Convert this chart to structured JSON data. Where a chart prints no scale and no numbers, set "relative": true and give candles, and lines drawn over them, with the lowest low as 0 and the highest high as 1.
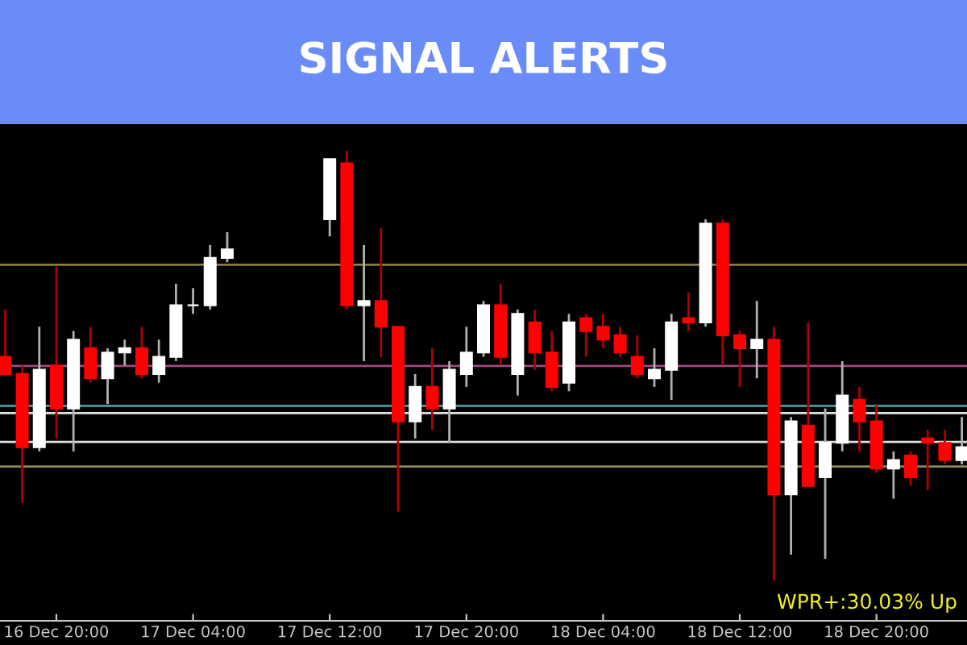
{
  "chart_data": {
    "type": "candlestick",
    "title": "SIGNAL ALERTS",
    "relative": true,
    "categories": [
      null,
      null,
      null,
      "16 Dec 20:00",
      null,
      null,
      null,
      null,
      null,
      null,
      null,
      "17 Dec 04:00",
      null,
      null,
      null,
      null,
      null,
      null,
      null,
      "17 Dec 12:00",
      null,
      null,
      null,
      null,
      null,
      null,
      null,
      "17 Dec 20:00",
      null,
      null,
      null,
      null,
      null,
      null,
      null,
      "18 Dec 04:00",
      null,
      null,
      null,
      null,
      null,
      null,
      null,
      "18 Dec 12:00",
      null,
      null,
      null,
      null,
      null,
      null,
      null,
      "18 Dec 20:00",
      null,
      null,
      null,
      null,
      null
    ],
    "ohlc": [
      [
        0.52,
        0.63,
        0.48,
        0.48
      ],
      [
        0.48,
        0.5,
        0.18,
        0.31
      ],
      [
        0.31,
        0.59,
        0.3,
        0.49
      ],
      [
        0.5,
        0.73,
        0.33,
        0.4
      ],
      [
        0.4,
        0.58,
        0.3,
        0.56
      ],
      [
        0.54,
        0.59,
        0.46,
        0.47
      ],
      [
        0.47,
        0.54,
        0.41,
        0.53
      ],
      [
        0.53,
        0.56,
        0.5,
        0.54
      ],
      [
        0.54,
        0.59,
        0.47,
        0.48
      ],
      [
        0.48,
        0.56,
        0.46,
        0.52
      ],
      [
        0.52,
        0.69,
        0.51,
        0.64
      ],
      [
        0.64,
        0.68,
        0.62,
        0.64
      ],
      [
        0.64,
        0.78,
        0.63,
        0.75
      ],
      [
        0.75,
        0.81,
        0.74,
        0.77
      ],
      null,
      null,
      null,
      null,
      null,
      [
        0.84,
        0.98,
        0.8,
        0.98
      ],
      [
        0.97,
        1,
        0.63,
        0.64
      ],
      [
        0.64,
        0.78,
        0.51,
        0.65
      ],
      [
        0.65,
        0.82,
        0.52,
        0.59
      ],
      [
        0.59,
        0.59,
        0.16,
        0.37
      ],
      [
        0.37,
        0.48,
        0.33,
        0.45
      ],
      [
        0.45,
        0.54,
        0.35,
        0.4
      ],
      [
        0.4,
        0.51,
        0.32,
        0.49
      ],
      [
        0.48,
        0.59,
        0.45,
        0.53
      ],
      [
        0.53,
        0.65,
        0.52,
        0.64
      ],
      [
        0.64,
        0.69,
        0.5,
        0.52
      ],
      [
        0.48,
        0.63,
        0.43,
        0.62
      ],
      [
        0.6,
        0.63,
        0.49,
        0.53
      ],
      [
        0.53,
        0.58,
        0.44,
        0.45
      ],
      [
        0.46,
        0.62,
        0.44,
        0.6
      ],
      [
        0.61,
        0.62,
        0.52,
        0.58
      ],
      [
        0.59,
        0.62,
        0.54,
        0.56
      ],
      [
        0.57,
        0.59,
        0.52,
        0.53
      ],
      [
        0.52,
        0.57,
        0.47,
        0.48
      ],
      [
        0.47,
        0.54,
        0.45,
        0.49
      ],
      [
        0.49,
        0.62,
        0.42,
        0.6
      ],
      [
        0.61,
        0.67,
        0.58,
        0.6
      ],
      [
        0.6,
        0.84,
        0.59,
        0.83
      ],
      [
        0.83,
        0.84,
        0.5,
        0.57
      ],
      [
        0.57,
        0.58,
        0.45,
        0.54
      ],
      [
        0.54,
        0.65,
        0.47,
        0.56
      ],
      [
        0.56,
        0.59,
        0,
        0.2
      ],
      [
        0.2,
        0.38,
        0.06,
        0.37
      ],
      [
        0.36,
        0.6,
        0.22,
        0.22
      ],
      [
        0.24,
        0.4,
        0.05,
        0.32
      ],
      [
        0.32,
        0.51,
        0.3,
        0.43
      ],
      [
        0.42,
        0.45,
        0.3,
        0.37
      ],
      [
        0.37,
        0.41,
        0.25,
        0.26
      ],
      [
        0.26,
        0.3,
        0.19,
        0.28
      ],
      [
        0.29,
        0.3,
        0.22,
        0.24
      ],
      [
        0.33,
        0.35,
        0.21,
        0.32
      ],
      [
        0.32,
        0.35,
        0.27,
        0.28
      ],
      [
        0.28,
        0.38,
        0.27,
        0.31
      ]
    ],
    "colors": [
      "#ff0000",
      "#ff0000",
      "#ffffff",
      "#ff0000",
      "#ffffff",
      "#ff0000",
      "#ffffff",
      "#ffffff",
      "#ff0000",
      "#ffffff",
      "#ffffff",
      "#ffffff",
      "#ffffff",
      "#ffffff",
      null,
      null,
      null,
      null,
      null,
      "#ffffff",
      "#ff0000",
      "#ffffff",
      "#ff0000",
      "#ff0000",
      "#ffffff",
      "#ff0000",
      "#ffffff",
      "#ffffff",
      "#ffffff",
      "#ff0000",
      "#ffffff",
      "#ff0000",
      "#ff0000",
      "#ffffff",
      "#ff0000",
      "#ff0000",
      "#ff0000",
      "#ff0000",
      "#ffffff",
      "#ffffff",
      "#ff0000",
      "#ffffff",
      "#ff0000",
      "#ff0000",
      "#ffffff",
      "#ff0000",
      "#ffffff",
      "#ff0000",
      "#ffffff",
      "#ffffff",
      "#ff0000",
      "#ff0000",
      "#ffffff",
      "#ff0000",
      "#ff0000",
      "#ff0000",
      "#ffffff"
    ],
    "ref_lines": [
      {
        "axis": "y",
        "value": 0.734,
        "color": "#8a7a48"
      },
      {
        "axis": "y",
        "value": 0.499,
        "color": "#a04a80"
      },
      {
        "axis": "y",
        "value": 0.406,
        "color": "#4a9aa0"
      },
      {
        "axis": "y",
        "value": 0.389,
        "color": "#e0e0e0"
      },
      {
        "axis": "y",
        "value": 0.322,
        "color": "#e0e0e0"
      },
      {
        "axis": "y",
        "value": 0.265,
        "color": "#8a8a58"
      }
    ],
    "annotations": [
      "WPR+:30.03% Up"
    ],
    "grid": false,
    "legend": false
  }
}
